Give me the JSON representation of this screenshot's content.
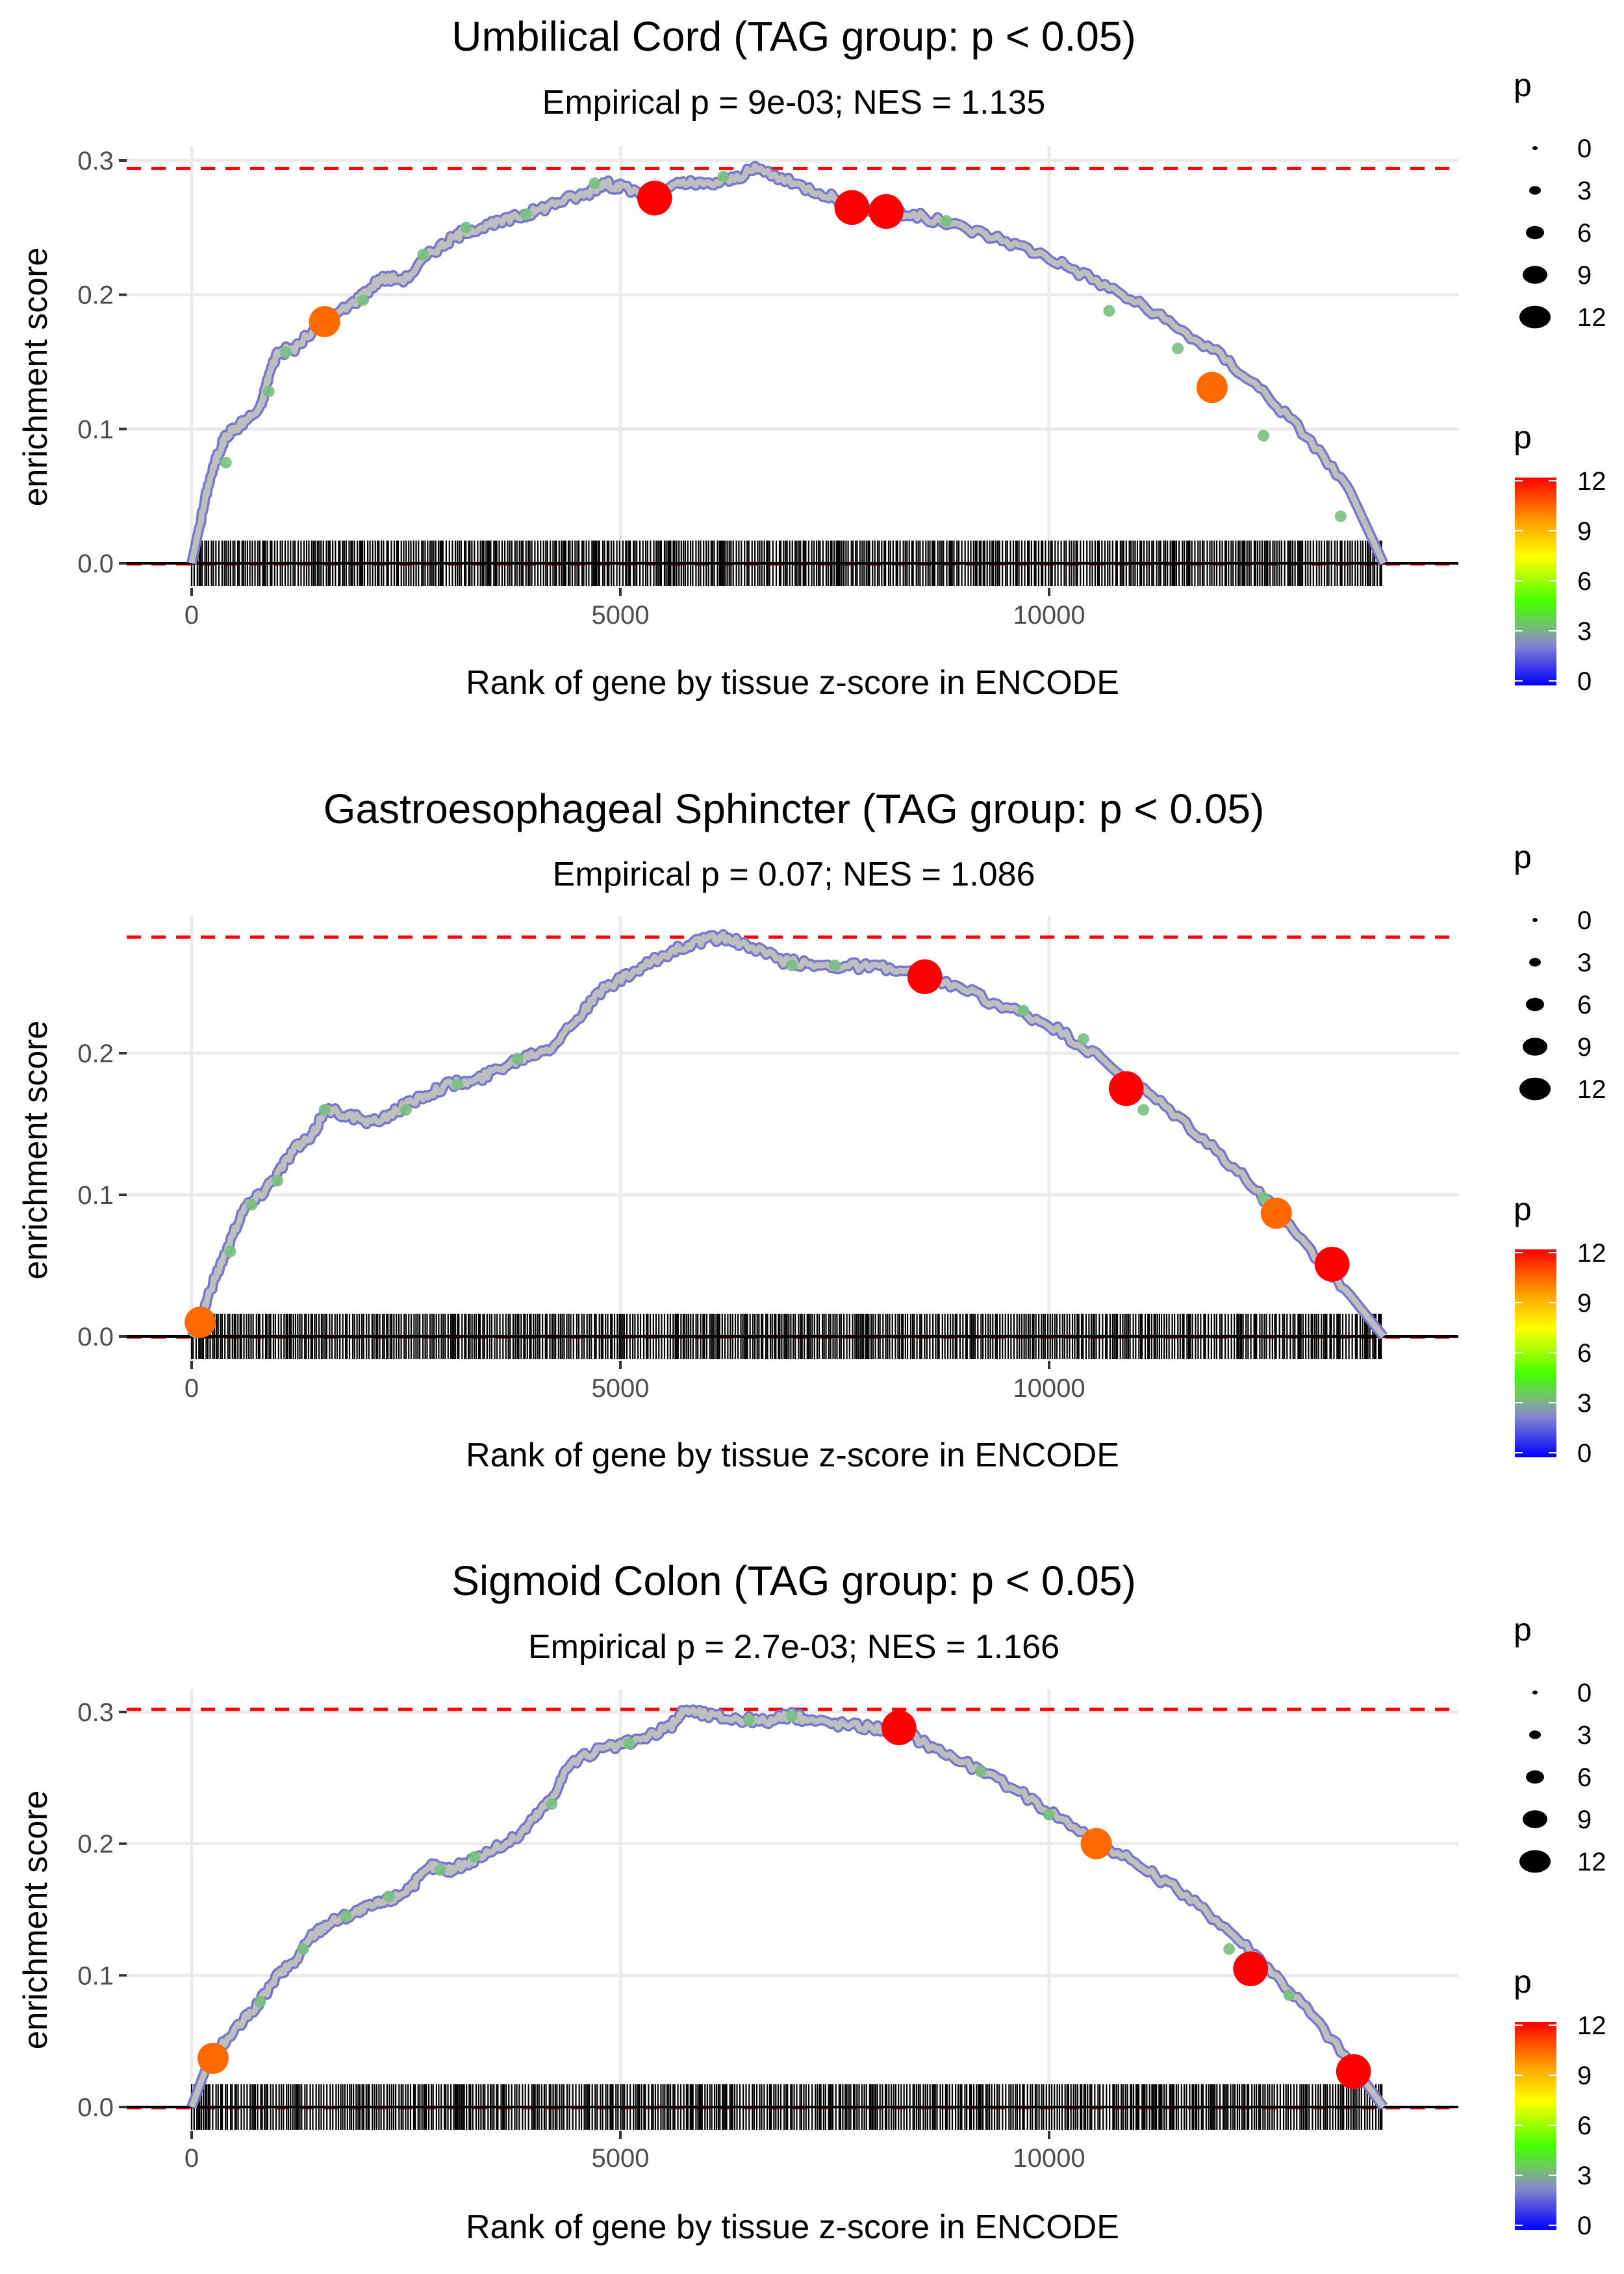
{
  "chart_data": [
    {
      "type": "line",
      "title": "Umbilical Cord (TAG group: p < 0.05)",
      "subtitle": "Empirical p = 9e-03; NES = 1.135",
      "xlabel": "Rank of gene by tissue z-score in ENCODE",
      "ylabel": "enrichment score",
      "xlim": [
        -800,
        14800
      ],
      "ylim": [
        -0.025,
        0.31
      ],
      "xticks": [
        0,
        5000,
        10000
      ],
      "xtick_labels": [
        "0",
        "5000",
        "10000"
      ],
      "yticks": [
        0.0,
        0.1,
        0.2,
        0.3
      ],
      "ytick_labels": [
        "0.0",
        "0.1",
        "0.2",
        "0.3"
      ],
      "max_es": 0.294,
      "n_genes": 13900,
      "grid": true,
      "curve": {
        "x": [
          0,
          100,
          200,
          300,
          400,
          600,
          800,
          900,
          1000,
          1200,
          1500,
          1800,
          2000,
          2200,
          2500,
          2800,
          3000,
          3200,
          3500,
          3800,
          4000,
          4300,
          4600,
          4800,
          5000,
          5400,
          5700,
          6000,
          6300,
          6600,
          7000,
          7400,
          7700,
          8100,
          8500,
          9000,
          9500,
          10000,
          10500,
          11000,
          11500,
          12000,
          12500,
          13000,
          13500,
          13900
        ],
        "y": [
          0.0,
          0.03,
          0.06,
          0.08,
          0.095,
          0.105,
          0.115,
          0.14,
          0.157,
          0.16,
          0.178,
          0.19,
          0.2,
          0.212,
          0.212,
          0.232,
          0.24,
          0.248,
          0.252,
          0.258,
          0.262,
          0.27,
          0.275,
          0.283,
          0.28,
          0.273,
          0.283,
          0.282,
          0.286,
          0.294,
          0.283,
          0.275,
          0.266,
          0.262,
          0.258,
          0.25,
          0.24,
          0.228,
          0.212,
          0.195,
          0.175,
          0.155,
          0.128,
          0.095,
          0.055,
          0.0
        ]
      },
      "highlight_points": [
        {
          "x": 1550,
          "y": 0.18,
          "p": 10
        },
        {
          "x": 5400,
          "y": 0.272,
          "p": 12
        },
        {
          "x": 7700,
          "y": 0.265,
          "p": 12
        },
        {
          "x": 8100,
          "y": 0.262,
          "p": 12
        },
        {
          "x": 11900,
          "y": 0.131,
          "p": 10
        }
      ],
      "minor_points": [
        {
          "x": 400,
          "y": 0.075,
          "p": 4
        },
        {
          "x": 900,
          "y": 0.128,
          "p": 4
        },
        {
          "x": 1100,
          "y": 0.157,
          "p": 4
        },
        {
          "x": 2000,
          "y": 0.196,
          "p": 4
        },
        {
          "x": 2700,
          "y": 0.23,
          "p": 4
        },
        {
          "x": 3200,
          "y": 0.25,
          "p": 4
        },
        {
          "x": 3900,
          "y": 0.26,
          "p": 4
        },
        {
          "x": 4700,
          "y": 0.283,
          "p": 4
        },
        {
          "x": 6200,
          "y": 0.288,
          "p": 4
        },
        {
          "x": 8800,
          "y": 0.255,
          "p": 4
        },
        {
          "x": 10700,
          "y": 0.188,
          "p": 4
        },
        {
          "x": 11500,
          "y": 0.16,
          "p": 4
        },
        {
          "x": 12500,
          "y": 0.095,
          "p": 4
        },
        {
          "x": 13400,
          "y": 0.035,
          "p": 4
        }
      ]
    },
    {
      "type": "line",
      "title": "Gastroesophageal Sphincter (TAG group: p < 0.05)",
      "subtitle": "Empirical p = 0.07; NES = 1.086",
      "xlabel": "Rank of gene by tissue z-score in ENCODE",
      "ylabel": "enrichment score",
      "xlim": [
        -800,
        14800
      ],
      "ylim": [
        -0.02,
        0.3
      ],
      "xticks": [
        0,
        5000,
        10000
      ],
      "xtick_labels": [
        "0",
        "5000",
        "10000"
      ],
      "yticks": [
        0.0,
        0.1,
        0.2
      ],
      "ytick_labels": [
        "0.0",
        "0.1",
        "0.2"
      ],
      "max_es": 0.282,
      "n_genes": 13900,
      "grid": true,
      "curve": {
        "x": [
          0,
          100,
          200,
          400,
          600,
          800,
          1000,
          1200,
          1400,
          1550,
          1800,
          2100,
          2400,
          2700,
          3000,
          3300,
          3600,
          3900,
          4200,
          4500,
          4800,
          5100,
          5400,
          5700,
          6000,
          6200,
          6500,
          6900,
          7300,
          7700,
          8100,
          8500,
          9000,
          9500,
          10000,
          10500,
          11000,
          11500,
          12000,
          12500,
          13000,
          13500,
          13900
        ],
        "y": [
          0.0,
          0.01,
          0.03,
          0.06,
          0.09,
          0.1,
          0.115,
          0.133,
          0.14,
          0.16,
          0.157,
          0.15,
          0.16,
          0.17,
          0.178,
          0.18,
          0.19,
          0.198,
          0.205,
          0.225,
          0.245,
          0.255,
          0.265,
          0.275,
          0.28,
          0.282,
          0.275,
          0.265,
          0.262,
          0.262,
          0.26,
          0.255,
          0.245,
          0.232,
          0.22,
          0.2,
          0.178,
          0.155,
          0.128,
          0.098,
          0.065,
          0.03,
          0.0
        ]
      },
      "highlight_points": [
        {
          "x": 100,
          "y": 0.01,
          "p": 10
        },
        {
          "x": 8550,
          "y": 0.254,
          "p": 12
        },
        {
          "x": 10900,
          "y": 0.175,
          "p": 12
        },
        {
          "x": 12650,
          "y": 0.087,
          "p": 10
        },
        {
          "x": 13300,
          "y": 0.051,
          "p": 12
        }
      ],
      "minor_points": [
        {
          "x": 450,
          "y": 0.06,
          "p": 4
        },
        {
          "x": 700,
          "y": 0.093,
          "p": 4
        },
        {
          "x": 1000,
          "y": 0.11,
          "p": 4
        },
        {
          "x": 1550,
          "y": 0.16,
          "p": 4
        },
        {
          "x": 2500,
          "y": 0.16,
          "p": 4
        },
        {
          "x": 3100,
          "y": 0.178,
          "p": 4
        },
        {
          "x": 3800,
          "y": 0.196,
          "p": 4
        },
        {
          "x": 7000,
          "y": 0.262,
          "p": 4
        },
        {
          "x": 7500,
          "y": 0.262,
          "p": 4
        },
        {
          "x": 9700,
          "y": 0.23,
          "p": 4
        },
        {
          "x": 10400,
          "y": 0.21,
          "p": 4
        },
        {
          "x": 11100,
          "y": 0.16,
          "p": 4
        },
        {
          "x": 12500,
          "y": 0.098,
          "p": 4
        }
      ]
    },
    {
      "type": "line",
      "title": "Sigmoid Colon (TAG group: p < 0.05)",
      "subtitle": "Empirical p = 2.7e-03; NES = 1.166",
      "xlabel": "Rank of gene by tissue z-score in ENCODE",
      "ylabel": "enrichment score",
      "xlim": [
        -800,
        14800
      ],
      "ylim": [
        -0.02,
        0.315
      ],
      "xticks": [
        0,
        5000,
        10000
      ],
      "xtick_labels": [
        "0",
        "5000",
        "10000"
      ],
      "yticks": [
        0.0,
        0.1,
        0.2,
        0.3
      ],
      "ytick_labels": [
        "0.0",
        "0.1",
        "0.2",
        "0.3"
      ],
      "max_es": 0.302,
      "n_genes": 13900,
      "grid": true,
      "curve": {
        "x": [
          0,
          200,
          400,
          600,
          800,
          1000,
          1200,
          1400,
          1600,
          1800,
          2000,
          2200,
          2400,
          2600,
          2800,
          3000,
          3200,
          3500,
          3800,
          4000,
          4200,
          4400,
          4700,
          5000,
          5300,
          5600,
          5750,
          6000,
          6300,
          6700,
          7000,
          7300,
          7700,
          8000,
          8300,
          8600,
          9000,
          9500,
          10000,
          10500,
          11000,
          11500,
          12000,
          12500,
          13000,
          13500,
          13900
        ],
        "y": [
          0.0,
          0.035,
          0.05,
          0.065,
          0.08,
          0.1,
          0.11,
          0.13,
          0.14,
          0.145,
          0.15,
          0.155,
          0.16,
          0.17,
          0.183,
          0.18,
          0.185,
          0.195,
          0.205,
          0.22,
          0.235,
          0.26,
          0.27,
          0.275,
          0.28,
          0.29,
          0.302,
          0.298,
          0.295,
          0.293,
          0.297,
          0.293,
          0.29,
          0.288,
          0.285,
          0.275,
          0.262,
          0.245,
          0.225,
          0.205,
          0.185,
          0.165,
          0.14,
          0.11,
          0.075,
          0.035,
          0.0
        ]
      },
      "highlight_points": [
        {
          "x": 250,
          "y": 0.037,
          "p": 10
        },
        {
          "x": 8250,
          "y": 0.288,
          "p": 12
        },
        {
          "x": 10550,
          "y": 0.2,
          "p": 10
        },
        {
          "x": 12350,
          "y": 0.105,
          "p": 12
        },
        {
          "x": 13550,
          "y": 0.027,
          "p": 12
        }
      ],
      "minor_points": [
        {
          "x": 800,
          "y": 0.08,
          "p": 4
        },
        {
          "x": 1300,
          "y": 0.12,
          "p": 4
        },
        {
          "x": 1800,
          "y": 0.145,
          "p": 4
        },
        {
          "x": 2300,
          "y": 0.16,
          "p": 4
        },
        {
          "x": 2900,
          "y": 0.18,
          "p": 4
        },
        {
          "x": 3300,
          "y": 0.19,
          "p": 4
        },
        {
          "x": 4200,
          "y": 0.23,
          "p": 4
        },
        {
          "x": 5100,
          "y": 0.276,
          "p": 4
        },
        {
          "x": 6500,
          "y": 0.294,
          "p": 4
        },
        {
          "x": 7000,
          "y": 0.297,
          "p": 4
        },
        {
          "x": 9200,
          "y": 0.255,
          "p": 4
        },
        {
          "x": 10000,
          "y": 0.222,
          "p": 4
        },
        {
          "x": 12100,
          "y": 0.12,
          "p": 4
        },
        {
          "x": 12800,
          "y": 0.085,
          "p": 4
        }
      ]
    }
  ],
  "legends": {
    "size_legend": {
      "title": "p",
      "values": [
        "0",
        "3",
        "6",
        "9",
        "12"
      ]
    },
    "color_legend": {
      "title": "p",
      "values": [
        "12",
        "9",
        "6",
        "3",
        "0"
      ],
      "colors": [
        "#ff0000",
        "#ffa500",
        "#ffff00",
        "#33ff00",
        "#999999",
        "#0000ff"
      ]
    }
  },
  "colors": {
    "curve": "#bebebe",
    "curve_outline": "#7777cc",
    "max_line": "#ff0000",
    "rug": "#000000",
    "grid": "#ebebeb",
    "high_p": "#ff0000",
    "mid_high_p": "#ff6a00",
    "low_p": "#33ee00"
  }
}
